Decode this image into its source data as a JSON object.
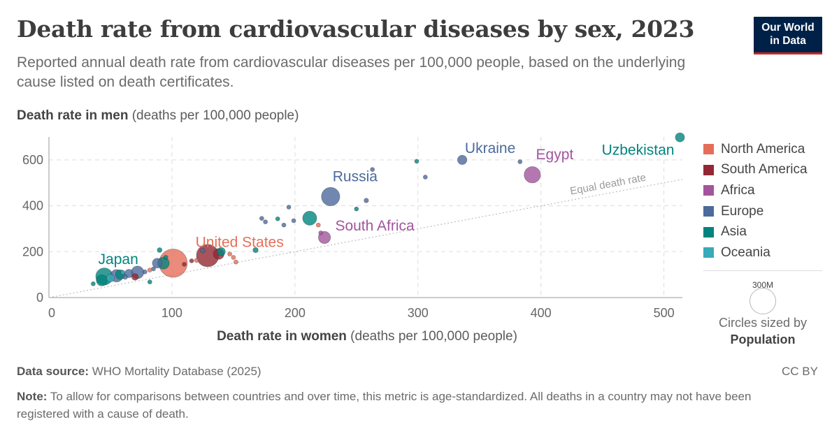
{
  "header": {
    "title": "Death rate from cardiovascular diseases by sex, 2023",
    "subtitle": "Reported annual death rate from cardiovascular diseases per 100,000 people, based on the underlying cause listed on death certificates.",
    "logo_line1": "Our World",
    "logo_line2": "in Data"
  },
  "axes": {
    "y_label_bold": "Death rate in men",
    "y_label_unit": " (deaths per 100,000 people)",
    "x_label_bold": "Death rate in women",
    "x_label_unit": " (deaths per 100,000 people)"
  },
  "legend": {
    "items": [
      {
        "label": "North America",
        "color": "#e56e5a"
      },
      {
        "label": "South America",
        "color": "#932834"
      },
      {
        "label": "Africa",
        "color": "#a2559c"
      },
      {
        "label": "Europe",
        "color": "#4c6a9c"
      },
      {
        "label": "Asia",
        "color": "#00847e"
      },
      {
        "label": "Oceania",
        "color": "#38aaba"
      }
    ],
    "size_value": "300M",
    "size_caption_line1": "Circles sized by",
    "size_caption_line2": "Population"
  },
  "footer": {
    "source_label": "Data source:",
    "source_text": " WHO Mortality Database (2025)",
    "license": "CC BY",
    "note_label": "Note:",
    "note_text": " To allow for comparisons between countries and over time, this metric is age-standardized. All deaths in a country may not have been registered with a cause of death."
  },
  "chart_data": {
    "type": "scatter",
    "xlim": [
      0,
      515
    ],
    "ylim": [
      0,
      700
    ],
    "x_ticks": [
      0,
      100,
      200,
      300,
      400,
      500
    ],
    "y_ticks": [
      0,
      200,
      400,
      600
    ],
    "grid": true,
    "legend_position": "right",
    "reference_line": {
      "label": "Equal death rate",
      "from": [
        0,
        0
      ],
      "to": [
        515,
        515
      ]
    },
    "size_reference": {
      "label": "300M",
      "population_millions": 300
    },
    "points": [
      {
        "label": "Uzbekistan",
        "region": "Asia",
        "x": 513,
        "y": 698,
        "pop": 36
      },
      {
        "label": "Ukraine",
        "region": "Europe",
        "x": 336,
        "y": 600,
        "pop": 37
      },
      {
        "label": "Egypt",
        "region": "Africa",
        "x": 393,
        "y": 535,
        "pop": 114
      },
      {
        "label": "Russia",
        "region": "Europe",
        "x": 229,
        "y": 440,
        "pop": 144
      },
      {
        "label": "South Africa",
        "region": "Africa",
        "x": 224,
        "y": 262,
        "pop": 63
      },
      {
        "label": "United States",
        "region": "North America",
        "x": 101,
        "y": 150,
        "pop": 340
      },
      {
        "label": "Japan",
        "region": "Asia",
        "x": 45,
        "y": 92,
        "pop": 124
      },
      {
        "label": "",
        "region": "Europe",
        "x": 383,
        "y": 592,
        "pop": 2
      },
      {
        "label": "",
        "region": "Asia",
        "x": 299,
        "y": 594,
        "pop": 3
      },
      {
        "label": "",
        "region": "Europe",
        "x": 306,
        "y": 525,
        "pop": 2
      },
      {
        "label": "",
        "region": "Europe",
        "x": 263,
        "y": 558,
        "pop": 2
      },
      {
        "label": "",
        "region": "Europe",
        "x": 258,
        "y": 423,
        "pop": 9
      },
      {
        "label": "",
        "region": "Asia",
        "x": 250,
        "y": 386,
        "pop": 3
      },
      {
        "label": "",
        "region": "Asia",
        "x": 212,
        "y": 346,
        "pop": 84
      },
      {
        "label": "",
        "region": "Europe",
        "x": 195,
        "y": 394,
        "pop": 2
      },
      {
        "label": "",
        "region": "Europe",
        "x": 199,
        "y": 335,
        "pop": 2
      },
      {
        "label": "",
        "region": "North America",
        "x": 219,
        "y": 316,
        "pop": 3
      },
      {
        "label": "",
        "region": "Europe",
        "x": 173,
        "y": 345,
        "pop": 2
      },
      {
        "label": "",
        "region": "Europe",
        "x": 176,
        "y": 330,
        "pop": 2
      },
      {
        "label": "",
        "region": "Europe",
        "x": 191,
        "y": 316,
        "pop": 2
      },
      {
        "label": "",
        "region": "Asia",
        "x": 186,
        "y": 343,
        "pop": 2
      },
      {
        "label": "",
        "region": "Africa",
        "x": 221,
        "y": 282,
        "pop": 2
      },
      {
        "label": "",
        "region": "Asia",
        "x": 168,
        "y": 207,
        "pop": 12
      },
      {
        "label": "",
        "region": "North America",
        "x": 152,
        "y": 155,
        "pop": 2
      },
      {
        "label": "",
        "region": "South America",
        "x": 129,
        "y": 183,
        "pop": 213
      },
      {
        "label": "",
        "region": "Asia",
        "x": 140,
        "y": 200,
        "pop": 30
      },
      {
        "label": "",
        "region": "South America",
        "x": 138,
        "y": 190,
        "pop": 50
      },
      {
        "label": "",
        "region": "Europe",
        "x": 125,
        "y": 205,
        "pop": 10
      },
      {
        "label": "",
        "region": "North America",
        "x": 147,
        "y": 190,
        "pop": 5
      },
      {
        "label": "",
        "region": "North America",
        "x": 150,
        "y": 175,
        "pop": 3
      },
      {
        "label": "",
        "region": "South America",
        "x": 116,
        "y": 160,
        "pop": 7
      },
      {
        "label": "",
        "region": "North America",
        "x": 120,
        "y": 162,
        "pop": 3
      },
      {
        "label": "",
        "region": "South America",
        "x": 110,
        "y": 145,
        "pop": 3
      },
      {
        "label": "",
        "region": "Asia",
        "x": 90,
        "y": 207,
        "pop": 10
      },
      {
        "label": "",
        "region": "Asia",
        "x": 95,
        "y": 175,
        "pop": 8
      },
      {
        "label": "",
        "region": "Asia",
        "x": 93,
        "y": 150,
        "pop": 60
      },
      {
        "label": "",
        "region": "Europe",
        "x": 88,
        "y": 150,
        "pop": 40
      },
      {
        "label": "",
        "region": "Europe",
        "x": 85,
        "y": 125,
        "pop": 6
      },
      {
        "label": "",
        "region": "North America",
        "x": 82,
        "y": 120,
        "pop": 4
      },
      {
        "label": "",
        "region": "South America",
        "x": 70,
        "y": 90,
        "pop": 19
      },
      {
        "label": "",
        "region": "Europe",
        "x": 72,
        "y": 110,
        "pop": 68
      },
      {
        "label": "",
        "region": "Europe",
        "x": 65,
        "y": 105,
        "pop": 30
      },
      {
        "label": "",
        "region": "Asia",
        "x": 58,
        "y": 100,
        "pop": 40
      },
      {
        "label": "",
        "region": "Europe",
        "x": 55,
        "y": 95,
        "pop": 66
      },
      {
        "label": "",
        "region": "Oceania",
        "x": 50,
        "y": 85,
        "pop": 26
      },
      {
        "label": "",
        "region": "Asia",
        "x": 43,
        "y": 75,
        "pop": 52
      },
      {
        "label": "",
        "region": "Asia",
        "x": 36,
        "y": 60,
        "pop": 6
      },
      {
        "label": "",
        "region": "Europe",
        "x": 62,
        "y": 90,
        "pop": 10
      },
      {
        "label": "",
        "region": "Oceania",
        "x": 60,
        "y": 110,
        "pop": 5
      },
      {
        "label": "",
        "region": "Asia",
        "x": 82,
        "y": 68,
        "pop": 5
      },
      {
        "label": "",
        "region": "Europe",
        "x": 78,
        "y": 112,
        "pop": 8
      }
    ]
  }
}
